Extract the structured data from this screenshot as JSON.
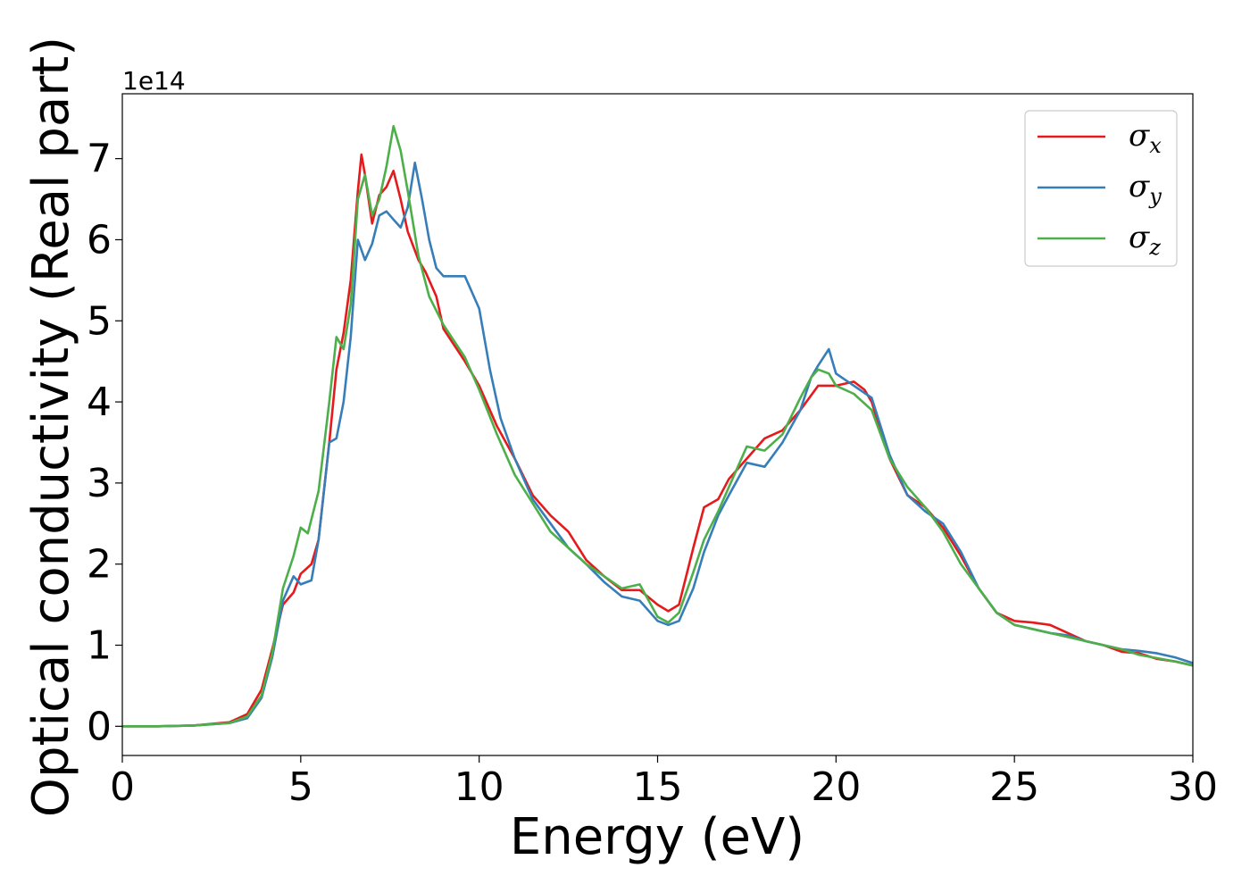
{
  "chart_data": {
    "type": "line",
    "title": "",
    "xlabel": "Energy (eV)",
    "ylabel": "Optical conductivity (Real part)",
    "y_offset_label": "1e14",
    "xlim": [
      0,
      30
    ],
    "ylim": [
      -0.36,
      7.8
    ],
    "x_ticks": [
      0,
      5,
      10,
      15,
      20,
      25,
      30
    ],
    "y_ticks": [
      0,
      1,
      2,
      3,
      4,
      5,
      6,
      7
    ],
    "grid": false,
    "legend_placement": "top-right",
    "series": [
      {
        "name": "σx",
        "symbol": "σ",
        "subscript": "x",
        "color": "#e41a1c",
        "points": [
          [
            0,
            0
          ],
          [
            1,
            0.0
          ],
          [
            2,
            0.01
          ],
          [
            3,
            0.05
          ],
          [
            3.5,
            0.15
          ],
          [
            3.9,
            0.45
          ],
          [
            4.2,
            0.95
          ],
          [
            4.5,
            1.5
          ],
          [
            4.8,
            1.65
          ],
          [
            5.0,
            1.88
          ],
          [
            5.3,
            2.0
          ],
          [
            5.5,
            2.3
          ],
          [
            5.8,
            3.5
          ],
          [
            6.0,
            4.4
          ],
          [
            6.2,
            4.85
          ],
          [
            6.4,
            5.5
          ],
          [
            6.6,
            6.6
          ],
          [
            6.7,
            7.05
          ],
          [
            6.8,
            6.8
          ],
          [
            7.0,
            6.2
          ],
          [
            7.2,
            6.55
          ],
          [
            7.4,
            6.65
          ],
          [
            7.6,
            6.85
          ],
          [
            7.8,
            6.5
          ],
          [
            8.0,
            6.1
          ],
          [
            8.3,
            5.75
          ],
          [
            8.5,
            5.6
          ],
          [
            8.8,
            5.3
          ],
          [
            9.0,
            4.9
          ],
          [
            9.3,
            4.7
          ],
          [
            9.6,
            4.5
          ],
          [
            10.0,
            4.2
          ],
          [
            10.5,
            3.7
          ],
          [
            11.0,
            3.3
          ],
          [
            11.5,
            2.85
          ],
          [
            12.0,
            2.6
          ],
          [
            12.5,
            2.4
          ],
          [
            13.0,
            2.05
          ],
          [
            13.5,
            1.85
          ],
          [
            14.0,
            1.68
          ],
          [
            14.5,
            1.68
          ],
          [
            15.0,
            1.5
          ],
          [
            15.3,
            1.42
          ],
          [
            15.6,
            1.5
          ],
          [
            16.0,
            2.2
          ],
          [
            16.3,
            2.7
          ],
          [
            16.7,
            2.8
          ],
          [
            17.0,
            3.05
          ],
          [
            17.5,
            3.3
          ],
          [
            18.0,
            3.55
          ],
          [
            18.5,
            3.65
          ],
          [
            19.0,
            3.9
          ],
          [
            19.5,
            4.2
          ],
          [
            20.0,
            4.2
          ],
          [
            20.5,
            4.25
          ],
          [
            20.8,
            4.15
          ],
          [
            21.0,
            4.0
          ],
          [
            21.5,
            3.3
          ],
          [
            22.0,
            2.85
          ],
          [
            22.5,
            2.7
          ],
          [
            23.0,
            2.45
          ],
          [
            23.5,
            2.1
          ],
          [
            24.0,
            1.7
          ],
          [
            24.5,
            1.4
          ],
          [
            25.0,
            1.3
          ],
          [
            25.5,
            1.28
          ],
          [
            26.0,
            1.25
          ],
          [
            26.5,
            1.15
          ],
          [
            27.0,
            1.05
          ],
          [
            27.5,
            1.0
          ],
          [
            28.0,
            0.92
          ],
          [
            28.5,
            0.9
          ],
          [
            29.0,
            0.83
          ],
          [
            29.5,
            0.8
          ],
          [
            30.0,
            0.75
          ]
        ]
      },
      {
        "name": "σy",
        "symbol": "σ",
        "subscript": "y",
        "color": "#377eb8",
        "points": [
          [
            0,
            0
          ],
          [
            1,
            0.0
          ],
          [
            2,
            0.01
          ],
          [
            3,
            0.04
          ],
          [
            3.5,
            0.1
          ],
          [
            3.9,
            0.35
          ],
          [
            4.2,
            0.85
          ],
          [
            4.5,
            1.55
          ],
          [
            4.8,
            1.85
          ],
          [
            5.0,
            1.75
          ],
          [
            5.3,
            1.8
          ],
          [
            5.5,
            2.3
          ],
          [
            5.8,
            3.5
          ],
          [
            6.0,
            3.55
          ],
          [
            6.2,
            4.0
          ],
          [
            6.4,
            4.8
          ],
          [
            6.6,
            6.0
          ],
          [
            6.8,
            5.75
          ],
          [
            7.0,
            5.95
          ],
          [
            7.2,
            6.3
          ],
          [
            7.4,
            6.35
          ],
          [
            7.6,
            6.25
          ],
          [
            7.8,
            6.15
          ],
          [
            8.0,
            6.4
          ],
          [
            8.2,
            6.95
          ],
          [
            8.4,
            6.5
          ],
          [
            8.6,
            6.0
          ],
          [
            8.8,
            5.65
          ],
          [
            9.0,
            5.55
          ],
          [
            9.3,
            5.55
          ],
          [
            9.6,
            5.55
          ],
          [
            10.0,
            5.15
          ],
          [
            10.3,
            4.4
          ],
          [
            10.6,
            3.8
          ],
          [
            11.0,
            3.3
          ],
          [
            11.5,
            2.8
          ],
          [
            12.0,
            2.5
          ],
          [
            12.5,
            2.2
          ],
          [
            13.0,
            2.0
          ],
          [
            13.5,
            1.78
          ],
          [
            14.0,
            1.6
          ],
          [
            14.5,
            1.55
          ],
          [
            15.0,
            1.3
          ],
          [
            15.3,
            1.25
          ],
          [
            15.6,
            1.3
          ],
          [
            16.0,
            1.7
          ],
          [
            16.3,
            2.15
          ],
          [
            16.7,
            2.6
          ],
          [
            17.0,
            2.85
          ],
          [
            17.5,
            3.25
          ],
          [
            18.0,
            3.2
          ],
          [
            18.5,
            3.5
          ],
          [
            19.0,
            3.9
          ],
          [
            19.3,
            4.3
          ],
          [
            19.5,
            4.45
          ],
          [
            19.8,
            4.65
          ],
          [
            20.0,
            4.35
          ],
          [
            20.5,
            4.2
          ],
          [
            21.0,
            4.05
          ],
          [
            21.5,
            3.35
          ],
          [
            22.0,
            2.85
          ],
          [
            22.5,
            2.65
          ],
          [
            23.0,
            2.5
          ],
          [
            23.5,
            2.15
          ],
          [
            24.0,
            1.7
          ],
          [
            24.5,
            1.4
          ],
          [
            25.0,
            1.25
          ],
          [
            25.5,
            1.2
          ],
          [
            26.0,
            1.15
          ],
          [
            26.5,
            1.12
          ],
          [
            27.0,
            1.05
          ],
          [
            27.5,
            1.0
          ],
          [
            28.0,
            0.95
          ],
          [
            28.5,
            0.93
          ],
          [
            29.0,
            0.9
          ],
          [
            29.5,
            0.85
          ],
          [
            30.0,
            0.78
          ]
        ]
      },
      {
        "name": "σz",
        "symbol": "σ",
        "subscript": "z",
        "color": "#4daf4a",
        "points": [
          [
            0,
            0
          ],
          [
            1,
            0.0
          ],
          [
            2,
            0.01
          ],
          [
            3,
            0.04
          ],
          [
            3.5,
            0.12
          ],
          [
            3.9,
            0.38
          ],
          [
            4.2,
            0.9
          ],
          [
            4.5,
            1.7
          ],
          [
            4.8,
            2.1
          ],
          [
            5.0,
            2.45
          ],
          [
            5.2,
            2.38
          ],
          [
            5.5,
            2.9
          ],
          [
            5.8,
            4.0
          ],
          [
            6.0,
            4.8
          ],
          [
            6.2,
            4.65
          ],
          [
            6.4,
            5.2
          ],
          [
            6.6,
            6.5
          ],
          [
            6.8,
            6.8
          ],
          [
            7.0,
            6.3
          ],
          [
            7.2,
            6.5
          ],
          [
            7.4,
            6.9
          ],
          [
            7.6,
            7.4
          ],
          [
            7.8,
            7.1
          ],
          [
            8.0,
            6.6
          ],
          [
            8.3,
            5.8
          ],
          [
            8.6,
            5.3
          ],
          [
            9.0,
            4.95
          ],
          [
            9.3,
            4.75
          ],
          [
            9.6,
            4.55
          ],
          [
            10.0,
            4.15
          ],
          [
            10.5,
            3.6
          ],
          [
            11.0,
            3.1
          ],
          [
            11.5,
            2.75
          ],
          [
            12.0,
            2.4
          ],
          [
            12.5,
            2.2
          ],
          [
            13.0,
            2.0
          ],
          [
            13.5,
            1.85
          ],
          [
            14.0,
            1.7
          ],
          [
            14.5,
            1.75
          ],
          [
            15.0,
            1.35
          ],
          [
            15.3,
            1.28
          ],
          [
            15.6,
            1.4
          ],
          [
            16.0,
            1.9
          ],
          [
            16.3,
            2.3
          ],
          [
            16.7,
            2.65
          ],
          [
            17.0,
            2.95
          ],
          [
            17.5,
            3.45
          ],
          [
            18.0,
            3.4
          ],
          [
            18.5,
            3.6
          ],
          [
            19.0,
            4.05
          ],
          [
            19.3,
            4.3
          ],
          [
            19.5,
            4.4
          ],
          [
            19.8,
            4.35
          ],
          [
            20.0,
            4.2
          ],
          [
            20.5,
            4.1
          ],
          [
            21.0,
            3.9
          ],
          [
            21.5,
            3.3
          ],
          [
            22.0,
            2.95
          ],
          [
            22.5,
            2.7
          ],
          [
            23.0,
            2.4
          ],
          [
            23.5,
            2.0
          ],
          [
            24.0,
            1.7
          ],
          [
            24.5,
            1.4
          ],
          [
            25.0,
            1.25
          ],
          [
            25.5,
            1.2
          ],
          [
            26.0,
            1.15
          ],
          [
            26.5,
            1.1
          ],
          [
            27.0,
            1.05
          ],
          [
            27.5,
            1.0
          ],
          [
            28.0,
            0.95
          ],
          [
            28.5,
            0.88
          ],
          [
            29.0,
            0.84
          ],
          [
            29.5,
            0.8
          ],
          [
            30.0,
            0.75
          ]
        ]
      }
    ]
  }
}
